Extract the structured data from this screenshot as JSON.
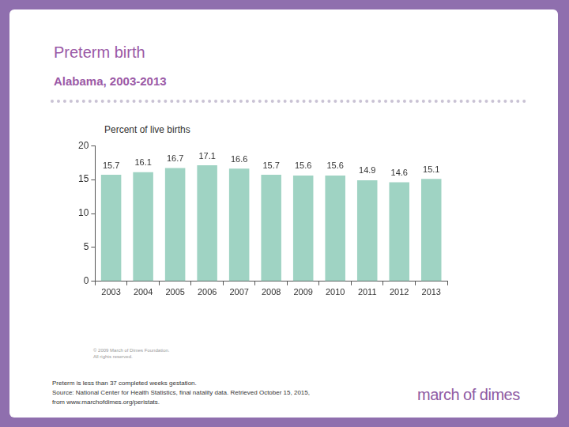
{
  "chart_data": {
    "type": "bar",
    "title": "Preterm birth",
    "subtitle": "Alabama, 2003-2013",
    "ylabel": "Percent of live births",
    "categories": [
      "2003",
      "2004",
      "2005",
      "2006",
      "2007",
      "2008",
      "2009",
      "2010",
      "2011",
      "2012",
      "2013"
    ],
    "values": [
      15.7,
      16.1,
      16.7,
      17.1,
      16.6,
      15.7,
      15.6,
      15.6,
      14.9,
      14.6,
      15.1
    ],
    "color": "#9fd3c3",
    "ylim": [
      0,
      20
    ],
    "yticks": [
      0,
      5,
      10,
      15,
      20
    ],
    "grid": false,
    "data_labels": true,
    "copyright": [
      "© 2009 March of Dimes Foundation.",
      "All rights reserved."
    ],
    "notes": [
      "Preterm is less than 37 completed weeks gestation.",
      "Source: National Center for Health Statistics, final natality data. Retrieved October 15, 2015,",
      "from www.marchofdimes.org/peristats."
    ],
    "logo": "march of dimes"
  }
}
